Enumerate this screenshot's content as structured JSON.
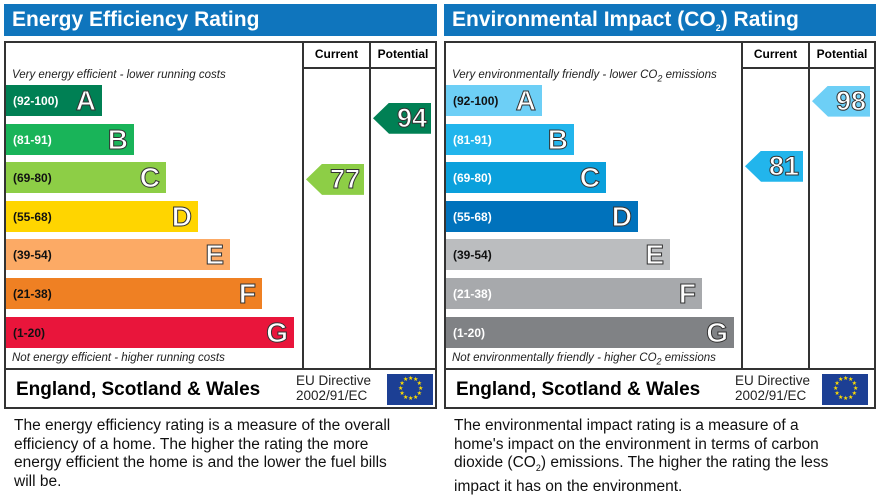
{
  "panels": [
    {
      "title": "Energy Efficiency Rating",
      "col_current": "Current",
      "col_potential": "Potential",
      "top_caption": "Very energy efficient - lower running costs",
      "bottom_caption": "Not energy efficient - higher running costs",
      "region": "England, Scotland & Wales",
      "directive_line1": "EU Directive",
      "directive_line2": "2002/91/EC",
      "description": "The energy efficiency rating is a measure of the overall efficiency of a home. The higher the rating the more energy efficient the home is and the lower the fuel bills will be.",
      "bands": [
        {
          "range": "(92-100)",
          "letter": "A",
          "color": "#008054",
          "text": "#fff"
        },
        {
          "range": "(81-91)",
          "letter": "B",
          "color": "#19b459",
          "text": "#fff"
        },
        {
          "range": "(69-80)",
          "letter": "C",
          "color": "#8dce46",
          "text": "#111"
        },
        {
          "range": "(55-68)",
          "letter": "D",
          "color": "#ffd500",
          "text": "#111"
        },
        {
          "range": "(39-54)",
          "letter": "E",
          "color": "#fcaa65",
          "text": "#111"
        },
        {
          "range": "(21-38)",
          "letter": "F",
          "color": "#ef8023",
          "text": "#111"
        },
        {
          "range": "(1-20)",
          "letter": "G",
          "color": "#e9153b",
          "text": "#111"
        }
      ],
      "current": {
        "value": "77",
        "color": "#8dce46"
      },
      "potential": {
        "value": "94",
        "color": "#008054"
      }
    },
    {
      "title_prefix": "Environmental Impact (CO",
      "title_sub": "2",
      "title_suffix": ") Rating",
      "col_current": "Current",
      "col_potential": "Potential",
      "top_caption_prefix": "Very environmentally friendly - lower CO",
      "top_caption_suffix": " emissions",
      "bottom_caption_prefix": "Not environmentally friendly - higher CO",
      "bottom_caption_suffix": " emissions",
      "region": "England, Scotland & Wales",
      "directive_line1": "EU Directive",
      "directive_line2": "2002/91/EC",
      "desc_prefix": "The environmental impact rating is a measure of a home's impact on the environment in terms of carbon dioxide (CO",
      "desc_sub": "2",
      "desc_suffix": ") emissions. The higher the rating the less impact it has on the environment.",
      "bands": [
        {
          "range": "(92-100)",
          "letter": "A",
          "color": "#6dcff6",
          "text": "#111"
        },
        {
          "range": "(81-91)",
          "letter": "B",
          "color": "#22b5ec",
          "text": "#fff"
        },
        {
          "range": "(69-80)",
          "letter": "C",
          "color": "#0aa0dc",
          "text": "#fff"
        },
        {
          "range": "(55-68)",
          "letter": "D",
          "color": "#0072bc",
          "text": "#fff"
        },
        {
          "range": "(39-54)",
          "letter": "E",
          "color": "#bbbdbf",
          "text": "#111"
        },
        {
          "range": "(21-38)",
          "letter": "F",
          "color": "#a7a9ac",
          "text": "#fff"
        },
        {
          "range": "(1-20)",
          "letter": "G",
          "color": "#808285",
          "text": "#fff"
        }
      ],
      "current": {
        "value": "81",
        "color": "#22b5ec"
      },
      "potential": {
        "value": "98",
        "color": "#6dcff6"
      }
    }
  ]
}
